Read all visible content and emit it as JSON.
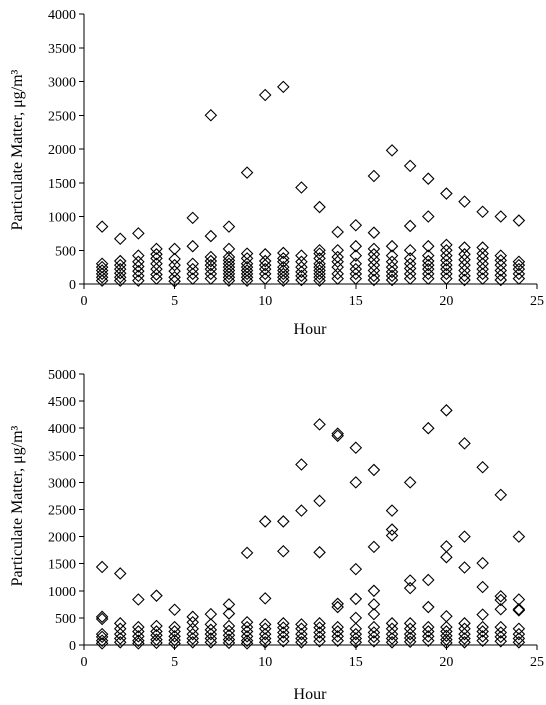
{
  "chart_data": [
    {
      "type": "scatter",
      "xlabel": "Hour",
      "ylabel": "Particulate Matter, μg/m³",
      "xlim": [
        0,
        25
      ],
      "ylim": [
        0,
        4000
      ],
      "xticks": [
        0,
        5,
        10,
        15,
        20,
        25
      ],
      "yticks": [
        0,
        500,
        1000,
        1500,
        2000,
        2500,
        3000,
        3500,
        4000
      ],
      "marker": "diamond",
      "grid": false,
      "legend": "none",
      "points": [
        [
          1,
          850
        ],
        [
          1,
          300
        ],
        [
          1,
          250
        ],
        [
          1,
          200
        ],
        [
          1,
          150
        ],
        [
          1,
          100
        ],
        [
          1,
          50
        ],
        [
          2,
          670
        ],
        [
          2,
          340
        ],
        [
          2,
          280
        ],
        [
          2,
          220
        ],
        [
          2,
          160
        ],
        [
          2,
          100
        ],
        [
          2,
          50
        ],
        [
          3,
          750
        ],
        [
          3,
          420
        ],
        [
          3,
          330
        ],
        [
          3,
          260
        ],
        [
          3,
          190
        ],
        [
          3,
          120
        ],
        [
          3,
          50
        ],
        [
          4,
          520
        ],
        [
          4,
          440
        ],
        [
          4,
          380
        ],
        [
          4,
          300
        ],
        [
          4,
          220
        ],
        [
          4,
          140
        ],
        [
          4,
          80
        ],
        [
          5,
          520
        ],
        [
          5,
          370
        ],
        [
          5,
          280
        ],
        [
          5,
          190
        ],
        [
          5,
          100
        ],
        [
          5,
          40
        ],
        [
          6,
          980
        ],
        [
          6,
          560
        ],
        [
          6,
          300
        ],
        [
          6,
          220
        ],
        [
          6,
          150
        ],
        [
          6,
          80
        ],
        [
          7,
          2500
        ],
        [
          7,
          710
        ],
        [
          7,
          400
        ],
        [
          7,
          340
        ],
        [
          7,
          280
        ],
        [
          7,
          220
        ],
        [
          7,
          150
        ],
        [
          7,
          80
        ],
        [
          8,
          850
        ],
        [
          8,
          520
        ],
        [
          8,
          400
        ],
        [
          8,
          350
        ],
        [
          8,
          300
        ],
        [
          8,
          250
        ],
        [
          8,
          200
        ],
        [
          8,
          150
        ],
        [
          8,
          100
        ],
        [
          8,
          50
        ],
        [
          9,
          1650
        ],
        [
          9,
          450
        ],
        [
          9,
          380
        ],
        [
          9,
          300
        ],
        [
          9,
          250
        ],
        [
          9,
          200
        ],
        [
          9,
          150
        ],
        [
          9,
          100
        ],
        [
          9,
          50
        ],
        [
          10,
          2800
        ],
        [
          10,
          440
        ],
        [
          10,
          340
        ],
        [
          10,
          280
        ],
        [
          10,
          220
        ],
        [
          10,
          150
        ],
        [
          10,
          80
        ],
        [
          11,
          2920
        ],
        [
          11,
          460
        ],
        [
          11,
          380
        ],
        [
          11,
          330
        ],
        [
          11,
          250
        ],
        [
          11,
          200
        ],
        [
          11,
          150
        ],
        [
          11,
          100
        ],
        [
          11,
          50
        ],
        [
          12,
          1430
        ],
        [
          12,
          420
        ],
        [
          12,
          330
        ],
        [
          12,
          250
        ],
        [
          12,
          180
        ],
        [
          12,
          120
        ],
        [
          12,
          60
        ],
        [
          13,
          1140
        ],
        [
          13,
          500
        ],
        [
          13,
          450
        ],
        [
          13,
          380
        ],
        [
          13,
          300
        ],
        [
          13,
          250
        ],
        [
          13,
          200
        ],
        [
          13,
          150
        ],
        [
          13,
          100
        ],
        [
          13,
          50
        ],
        [
          14,
          770
        ],
        [
          14,
          500
        ],
        [
          14,
          400
        ],
        [
          14,
          330
        ],
        [
          14,
          250
        ],
        [
          14,
          150
        ],
        [
          14,
          80
        ],
        [
          15,
          870
        ],
        [
          15,
          560
        ],
        [
          15,
          420
        ],
        [
          15,
          300
        ],
        [
          15,
          220
        ],
        [
          15,
          150
        ],
        [
          15,
          80
        ],
        [
          16,
          1600
        ],
        [
          16,
          760
        ],
        [
          16,
          520
        ],
        [
          16,
          440
        ],
        [
          16,
          360
        ],
        [
          16,
          280
        ],
        [
          16,
          200
        ],
        [
          16,
          120
        ],
        [
          16,
          60
        ],
        [
          17,
          1980
        ],
        [
          17,
          560
        ],
        [
          17,
          420
        ],
        [
          17,
          330
        ],
        [
          17,
          250
        ],
        [
          17,
          180
        ],
        [
          17,
          120
        ],
        [
          17,
          60
        ],
        [
          18,
          1750
        ],
        [
          18,
          860
        ],
        [
          18,
          500
        ],
        [
          18,
          380
        ],
        [
          18,
          300
        ],
        [
          18,
          230
        ],
        [
          18,
          150
        ],
        [
          18,
          80
        ],
        [
          19,
          1560
        ],
        [
          19,
          1000
        ],
        [
          19,
          560
        ],
        [
          19,
          420
        ],
        [
          19,
          340
        ],
        [
          19,
          280
        ],
        [
          19,
          220
        ],
        [
          19,
          150
        ],
        [
          19,
          80
        ],
        [
          20,
          1340
        ],
        [
          20,
          580
        ],
        [
          20,
          500
        ],
        [
          20,
          420
        ],
        [
          20,
          350
        ],
        [
          20,
          280
        ],
        [
          20,
          220
        ],
        [
          20,
          150
        ],
        [
          20,
          80
        ],
        [
          21,
          1220
        ],
        [
          21,
          540
        ],
        [
          21,
          440
        ],
        [
          21,
          360
        ],
        [
          21,
          280
        ],
        [
          21,
          200
        ],
        [
          21,
          120
        ],
        [
          21,
          60
        ],
        [
          22,
          1070
        ],
        [
          22,
          540
        ],
        [
          22,
          450
        ],
        [
          22,
          380
        ],
        [
          22,
          300
        ],
        [
          22,
          220
        ],
        [
          22,
          150
        ],
        [
          22,
          80
        ],
        [
          23,
          1000
        ],
        [
          23,
          420
        ],
        [
          23,
          350
        ],
        [
          23,
          280
        ],
        [
          23,
          200
        ],
        [
          23,
          130
        ],
        [
          23,
          60
        ],
        [
          24,
          940
        ],
        [
          24,
          330
        ],
        [
          24,
          280
        ],
        [
          24,
          220
        ],
        [
          24,
          150
        ],
        [
          24,
          80
        ]
      ]
    },
    {
      "type": "scatter",
      "xlabel": "Hour",
      "ylabel": "Particulate Matter, μg/m³",
      "xlim": [
        0,
        25
      ],
      "ylim": [
        0,
        5000
      ],
      "xticks": [
        0,
        5,
        10,
        15,
        20,
        25
      ],
      "yticks": [
        0,
        500,
        1000,
        1500,
        2000,
        2500,
        3000,
        3500,
        4000,
        4500,
        5000
      ],
      "marker": "diamond",
      "grid": false,
      "legend": "none",
      "points": [
        [
          1,
          1440
        ],
        [
          1,
          520
        ],
        [
          1,
          480
        ],
        [
          1,
          200
        ],
        [
          1,
          150
        ],
        [
          1,
          80
        ],
        [
          1,
          30
        ],
        [
          2,
          1320
        ],
        [
          2,
          400
        ],
        [
          2,
          300
        ],
        [
          2,
          200
        ],
        [
          2,
          120
        ],
        [
          2,
          50
        ],
        [
          3,
          840
        ],
        [
          3,
          330
        ],
        [
          3,
          250
        ],
        [
          3,
          160
        ],
        [
          3,
          80
        ],
        [
          3,
          30
        ],
        [
          4,
          910
        ],
        [
          4,
          350
        ],
        [
          4,
          250
        ],
        [
          4,
          180
        ],
        [
          4,
          100
        ],
        [
          4,
          40
        ],
        [
          5,
          650
        ],
        [
          5,
          330
        ],
        [
          5,
          250
        ],
        [
          5,
          160
        ],
        [
          5,
          90
        ],
        [
          5,
          30
        ],
        [
          6,
          520
        ],
        [
          6,
          420
        ],
        [
          6,
          300
        ],
        [
          6,
          200
        ],
        [
          6,
          120
        ],
        [
          6,
          50
        ],
        [
          7,
          570
        ],
        [
          7,
          380
        ],
        [
          7,
          280
        ],
        [
          7,
          200
        ],
        [
          7,
          120
        ],
        [
          7,
          50
        ],
        [
          8,
          750
        ],
        [
          8,
          580
        ],
        [
          8,
          350
        ],
        [
          8,
          260
        ],
        [
          8,
          180
        ],
        [
          8,
          100
        ],
        [
          8,
          40
        ],
        [
          9,
          1700
        ],
        [
          9,
          420
        ],
        [
          9,
          330
        ],
        [
          9,
          250
        ],
        [
          9,
          160
        ],
        [
          9,
          80
        ],
        [
          9,
          30
        ],
        [
          10,
          2280
        ],
        [
          10,
          860
        ],
        [
          10,
          380
        ],
        [
          10,
          300
        ],
        [
          10,
          200
        ],
        [
          10,
          120
        ],
        [
          10,
          50
        ],
        [
          11,
          2280
        ],
        [
          11,
          1730
        ],
        [
          11,
          400
        ],
        [
          11,
          320
        ],
        [
          11,
          230
        ],
        [
          11,
          150
        ],
        [
          11,
          70
        ],
        [
          12,
          3330
        ],
        [
          12,
          2480
        ],
        [
          12,
          380
        ],
        [
          12,
          300
        ],
        [
          12,
          200
        ],
        [
          12,
          120
        ],
        [
          12,
          50
        ],
        [
          13,
          4070
        ],
        [
          13,
          2660
        ],
        [
          13,
          1710
        ],
        [
          13,
          400
        ],
        [
          13,
          320
        ],
        [
          13,
          230
        ],
        [
          13,
          150
        ],
        [
          13,
          70
        ],
        [
          14,
          3900
        ],
        [
          14,
          3860
        ],
        [
          14,
          760
        ],
        [
          14,
          700
        ],
        [
          14,
          330
        ],
        [
          14,
          250
        ],
        [
          14,
          160
        ],
        [
          14,
          80
        ],
        [
          15,
          3640
        ],
        [
          15,
          3000
        ],
        [
          15,
          1400
        ],
        [
          15,
          850
        ],
        [
          15,
          500
        ],
        [
          15,
          300
        ],
        [
          15,
          200
        ],
        [
          15,
          120
        ],
        [
          15,
          50
        ],
        [
          16,
          3230
        ],
        [
          16,
          1810
        ],
        [
          16,
          1000
        ],
        [
          16,
          750
        ],
        [
          16,
          570
        ],
        [
          16,
          330
        ],
        [
          16,
          230
        ],
        [
          16,
          150
        ],
        [
          16,
          70
        ],
        [
          17,
          2480
        ],
        [
          17,
          2130
        ],
        [
          17,
          2020
        ],
        [
          17,
          400
        ],
        [
          17,
          300
        ],
        [
          17,
          200
        ],
        [
          17,
          120
        ],
        [
          17,
          50
        ],
        [
          18,
          3000
        ],
        [
          18,
          1190
        ],
        [
          18,
          1050
        ],
        [
          18,
          400
        ],
        [
          18,
          300
        ],
        [
          18,
          200
        ],
        [
          18,
          130
        ],
        [
          18,
          60
        ],
        [
          19,
          4000
        ],
        [
          19,
          1200
        ],
        [
          19,
          700
        ],
        [
          19,
          330
        ],
        [
          19,
          250
        ],
        [
          19,
          160
        ],
        [
          19,
          80
        ],
        [
          20,
          4330
        ],
        [
          20,
          1820
        ],
        [
          20,
          1620
        ],
        [
          20,
          530
        ],
        [
          20,
          330
        ],
        [
          20,
          250
        ],
        [
          20,
          170
        ],
        [
          20,
          100
        ],
        [
          20,
          40
        ],
        [
          21,
          3720
        ],
        [
          21,
          2000
        ],
        [
          21,
          1430
        ],
        [
          21,
          400
        ],
        [
          21,
          300
        ],
        [
          21,
          200
        ],
        [
          21,
          120
        ],
        [
          21,
          50
        ],
        [
          22,
          3280
        ],
        [
          22,
          1510
        ],
        [
          22,
          1070
        ],
        [
          22,
          560
        ],
        [
          22,
          330
        ],
        [
          22,
          250
        ],
        [
          22,
          160
        ],
        [
          22,
          80
        ],
        [
          23,
          2770
        ],
        [
          23,
          900
        ],
        [
          23,
          830
        ],
        [
          23,
          660
        ],
        [
          23,
          330
        ],
        [
          23,
          230
        ],
        [
          23,
          150
        ],
        [
          23,
          70
        ],
        [
          24,
          2000
        ],
        [
          24,
          840
        ],
        [
          24,
          660
        ],
        [
          24,
          640
        ],
        [
          24,
          300
        ],
        [
          24,
          200
        ],
        [
          24,
          120
        ],
        [
          24,
          50
        ]
      ]
    }
  ]
}
